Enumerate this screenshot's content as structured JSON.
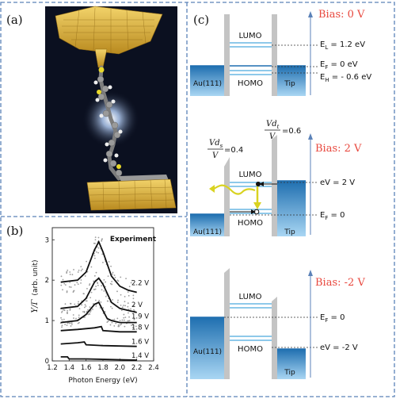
{
  "panels": {
    "a": {
      "label": "(a)"
    },
    "b": {
      "label": "(b)",
      "legend": "Experiment",
      "ylabel": "Y/Γ",
      "ylabel_unit": "(arb. unit)",
      "xlabel": "Photon Energy (eV)",
      "xticks": [
        "1.2",
        "1.4",
        "1.6",
        "1.8",
        "2.0",
        "2.2",
        "2.4"
      ],
      "yticks": [
        "0",
        "1",
        "2",
        "3"
      ],
      "curve_labels": [
        "2.2 V",
        "2 V",
        "1.9 V",
        "1.8 V",
        "1.6 V",
        "1.4 V"
      ]
    },
    "c": {
      "label": "(c)",
      "top": {
        "bias": "Bias: 0 V",
        "lumo": "LUMO",
        "homo": "HOMO",
        "left": "Au(111)",
        "right": "Tip",
        "el": "E",
        "el_sub": "L",
        "el_val": "= 1.2 eV",
        "ef": "E",
        "ef_sub": "F",
        "ef_val": "= 0 eV",
        "eh": "E",
        "eh_sub": "H",
        "eh_val": "= - 0.6 eV"
      },
      "middle": {
        "bias": "Bias: 2 V",
        "lumo": "LUMO",
        "homo": "HOMO",
        "left": "Au(111)",
        "right": "Tip",
        "vds_num": "Vd",
        "vds_sub": "s",
        "vds_den": "V",
        "vds_val": "=0.4",
        "vdt_num": "Vd",
        "vdt_sub": "t",
        "vdt_den": "V",
        "vdt_val": "=0.6",
        "ev": "eV = 2 V",
        "ef": "E",
        "ef_sub": "F",
        "ef_val": " = 0"
      },
      "bottom": {
        "bias": "Bias: -2 V",
        "lumo": "LUMO",
        "homo": "HOMO",
        "left": "Au(111)",
        "right": "Tip",
        "ef": "E",
        "ef_sub": "F",
        "ef_val": " = 0",
        "ev": "eV = -2 V"
      }
    }
  },
  "colors": {
    "dashed_border": "#5b82b8",
    "bias_text": "#e8473d",
    "level": "#8ec9ea",
    "electrode_dark": "#2b79b8",
    "electrode_light": "#a9d6f3",
    "barrier": "#c4c4c4",
    "photon": "#d9d321",
    "gold": "#d6a935",
    "molecule_bg": "#0b1020"
  },
  "chart_data": {
    "type": "line",
    "xlabel": "Photon Energy (eV)",
    "ylabel": "Y/Γ (arb. unit)",
    "xlim": [
      1.2,
      2.4
    ],
    "ylim": [
      0,
      3.3
    ],
    "series": [
      {
        "name": "2.2 V",
        "x": [
          1.3,
          1.5,
          1.6,
          1.7,
          1.75,
          1.8,
          1.9,
          2.0,
          2.1,
          2.2
        ],
        "values": [
          1.95,
          2.0,
          2.2,
          2.75,
          2.95,
          2.7,
          2.1,
          1.85,
          1.75,
          1.7
        ]
      },
      {
        "name": "2 V",
        "x": [
          1.3,
          1.5,
          1.6,
          1.7,
          1.75,
          1.8,
          1.9,
          2.0,
          2.1,
          2.2
        ],
        "values": [
          1.3,
          1.35,
          1.55,
          1.95,
          2.05,
          1.9,
          1.45,
          1.3,
          1.25,
          1.2
        ]
      },
      {
        "name": "1.9 V",
        "x": [
          1.3,
          1.5,
          1.6,
          1.7,
          1.75,
          1.8,
          1.85,
          1.9,
          2.0,
          2.2
        ],
        "values": [
          0.95,
          1.0,
          1.15,
          1.4,
          1.45,
          1.25,
          1.05,
          1.0,
          0.95,
          0.95
        ]
      },
      {
        "name": "1.8 V",
        "x": [
          1.3,
          1.5,
          1.7,
          1.78,
          1.8,
          2.0,
          2.2
        ],
        "values": [
          0.75,
          0.78,
          0.82,
          0.85,
          0.75,
          0.72,
          0.72
        ]
      },
      {
        "name": "1.6 V",
        "x": [
          1.3,
          1.5,
          1.58,
          1.6,
          1.8,
          2.2
        ],
        "values": [
          0.42,
          0.45,
          0.47,
          0.4,
          0.38,
          0.36
        ]
      },
      {
        "name": "1.4 V",
        "x": [
          1.3,
          1.38,
          1.4,
          1.6,
          2.2
        ],
        "values": [
          0.1,
          0.1,
          0.05,
          0.05,
          0.02
        ]
      }
    ]
  }
}
